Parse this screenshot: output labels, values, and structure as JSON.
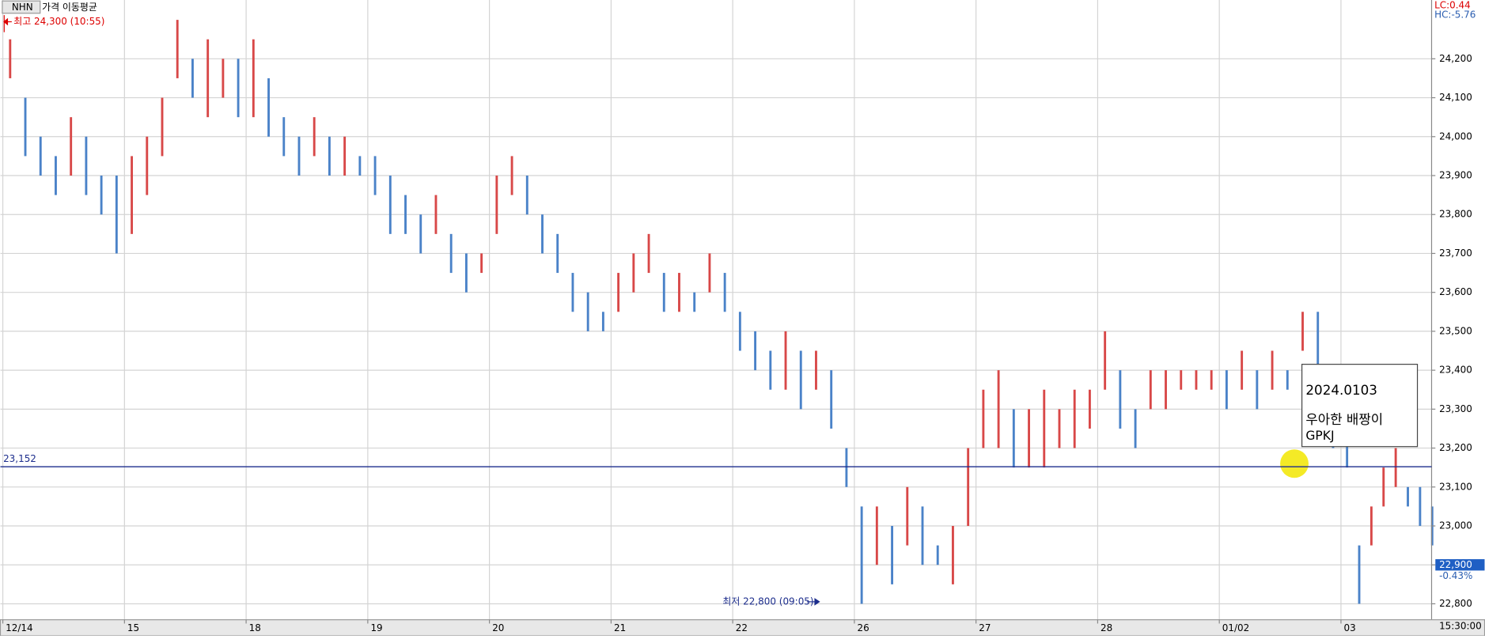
{
  "chart_data": {
    "type": "range-bar",
    "legend": [
      "NHN",
      "가격 이동평균"
    ],
    "xlim": [
      -0.02,
      11.745
    ],
    "xticks": [
      {
        "value": 0,
        "label": "12/14"
      },
      {
        "value": 1,
        "label": "15"
      },
      {
        "value": 2,
        "label": "18"
      },
      {
        "value": 3,
        "label": "19"
      },
      {
        "value": 4,
        "label": "20"
      },
      {
        "value": 5,
        "label": "21"
      },
      {
        "value": 6,
        "label": "22"
      },
      {
        "value": 7,
        "label": "26"
      },
      {
        "value": 8,
        "label": "27"
      },
      {
        "value": 9,
        "label": "28"
      },
      {
        "value": 10,
        "label": "01/02"
      },
      {
        "value": 11,
        "label": "03"
      }
    ],
    "ylim": [
      22759,
      24351
    ],
    "yticks": [
      {
        "value": 22800,
        "label": "22,800"
      },
      {
        "value": 22900,
        "label": "22,900"
      },
      {
        "value": 23000,
        "label": "23,000"
      },
      {
        "value": 23100,
        "label": "23,100"
      },
      {
        "value": 23200,
        "label": "23,200"
      },
      {
        "value": 23300,
        "label": "23,300"
      },
      {
        "value": 23400,
        "label": "23,400"
      },
      {
        "value": 23500,
        "label": "23,500"
      },
      {
        "value": 23600,
        "label": "23,600"
      },
      {
        "value": 23700,
        "label": "23,700"
      },
      {
        "value": 23800,
        "label": "23,800"
      },
      {
        "value": 23900,
        "label": "23,900"
      },
      {
        "value": 24000,
        "label": "24,000"
      },
      {
        "value": 24100,
        "label": "24,100"
      },
      {
        "value": 24200,
        "label": "24,200"
      }
    ],
    "grid": true,
    "up_color": "#d84848",
    "down_color": "#4a82c8",
    "series": [
      {
        "name": "NHN",
        "x": [
          0.06,
          0.185,
          0.31,
          0.435,
          0.56,
          0.685,
          0.81,
          0.935,
          1.06,
          1.185,
          1.31,
          1.435,
          1.56,
          1.685,
          1.81,
          1.935,
          2.06,
          2.185,
          2.31,
          2.435,
          2.56,
          2.685,
          2.81,
          2.935,
          3.06,
          3.185,
          3.31,
          3.435,
          3.56,
          3.685,
          3.81,
          3.935,
          4.06,
          4.185,
          4.31,
          4.435,
          4.56,
          4.685,
          4.81,
          4.935,
          5.06,
          5.185,
          5.31,
          5.435,
          5.56,
          5.685,
          5.81,
          5.935,
          6.06,
          6.185,
          6.31,
          6.435,
          6.56,
          6.685,
          6.81,
          6.935,
          7.06,
          7.185,
          7.31,
          7.435,
          7.56,
          7.685,
          7.81,
          7.935,
          8.06,
          8.185,
          8.31,
          8.435,
          8.56,
          8.685,
          8.81,
          8.935,
          9.06,
          9.185,
          9.31,
          9.435,
          9.56,
          9.685,
          9.81,
          9.935,
          10.06,
          10.185,
          10.31,
          10.435,
          10.56,
          10.685,
          10.81,
          10.935,
          11.05,
          11.15,
          11.25,
          11.35,
          11.45,
          11.55,
          11.65,
          11.75
        ],
        "low": [
          24150,
          23950,
          23900,
          23850,
          23900,
          23850,
          23800,
          23700,
          23750,
          23850,
          23950,
          24150,
          24100,
          24050,
          24100,
          24050,
          24050,
          24000,
          23950,
          23900,
          23950,
          23900,
          23900,
          23900,
          23850,
          23750,
          23750,
          23700,
          23750,
          23650,
          23600,
          23650,
          23750,
          23850,
          23800,
          23700,
          23650,
          23550,
          23500,
          23500,
          23550,
          23600,
          23650,
          23550,
          23550,
          23550,
          23600,
          23550,
          23450,
          23400,
          23350,
          23350,
          23300,
          23350,
          23250,
          23100,
          22800,
          22900,
          22850,
          22950,
          22900,
          22900,
          22850,
          23000,
          23200,
          23200,
          23150,
          23150,
          23150,
          23200,
          23200,
          23250,
          23350,
          23250,
          23200,
          23300,
          23300,
          23350,
          23350,
          23350,
          23300,
          23350,
          23300,
          23350,
          23350,
          23450,
          23400,
          23200,
          23150,
          22800,
          22950,
          23050,
          23100,
          23050,
          23000,
          22950
        ],
        "high": [
          24250,
          24100,
          24000,
          23950,
          24050,
          24000,
          23900,
          23900,
          23950,
          24000,
          24100,
          24300,
          24200,
          24250,
          24200,
          24200,
          24250,
          24150,
          24050,
          24000,
          24050,
          24000,
          24000,
          23950,
          23950,
          23900,
          23850,
          23800,
          23850,
          23750,
          23700,
          23700,
          23900,
          23950,
          23900,
          23800,
          23750,
          23650,
          23600,
          23550,
          23650,
          23700,
          23750,
          23650,
          23650,
          23600,
          23700,
          23650,
          23550,
          23500,
          23450,
          23500,
          23450,
          23450,
          23400,
          23200,
          23050,
          23050,
          23000,
          23100,
          23050,
          22950,
          23000,
          23200,
          23350,
          23400,
          23300,
          23300,
          23350,
          23300,
          23350,
          23350,
          23500,
          23400,
          23300,
          23400,
          23400,
          23400,
          23400,
          23400,
          23400,
          23450,
          23400,
          23450,
          23400,
          23550,
          23550,
          23300,
          23250,
          22950,
          23050,
          23150,
          23200,
          23100,
          23100,
          23050
        ]
      }
    ],
    "high_label": "최고 24,300 (10:55)",
    "low_label": "최저 22,800 (09:05)",
    "ref_line": {
      "value": 23152,
      "label": "23,152"
    },
    "last_price": {
      "value": 22900,
      "label": "22,900"
    },
    "change": "-0.43%",
    "lc": "LC:0.44",
    "hc": "HC:-5.76",
    "time": "15:30:00",
    "note": {
      "date": "2024.0103",
      "line1": "우아한 배짱이",
      "line2": "GPKJ"
    }
  }
}
